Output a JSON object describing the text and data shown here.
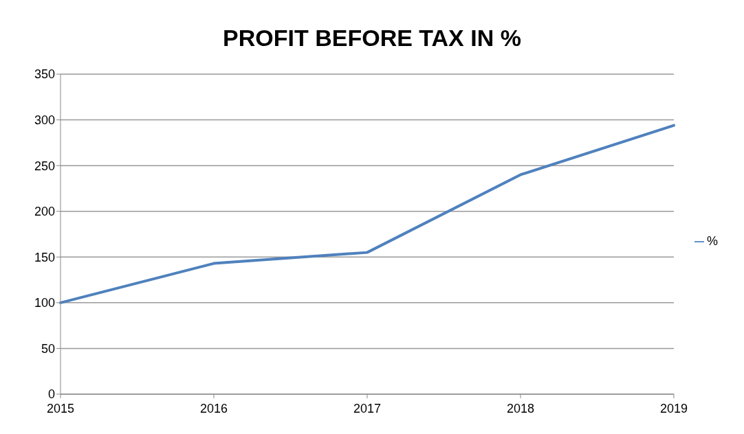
{
  "chart_data": {
    "type": "line",
    "title": "PROFIT BEFORE TAX IN %",
    "categories": [
      "2015",
      "2016",
      "2017",
      "2018",
      "2019"
    ],
    "series": [
      {
        "name": "%",
        "color": "#4f81bd",
        "values": [
          100,
          143,
          155,
          240,
          294
        ]
      }
    ],
    "ylim": [
      0,
      350
    ],
    "yticks": [
      0,
      50,
      100,
      150,
      200,
      250,
      300,
      350
    ],
    "grid": "y",
    "legend": "right",
    "marker": "none",
    "line_style": "solid"
  }
}
